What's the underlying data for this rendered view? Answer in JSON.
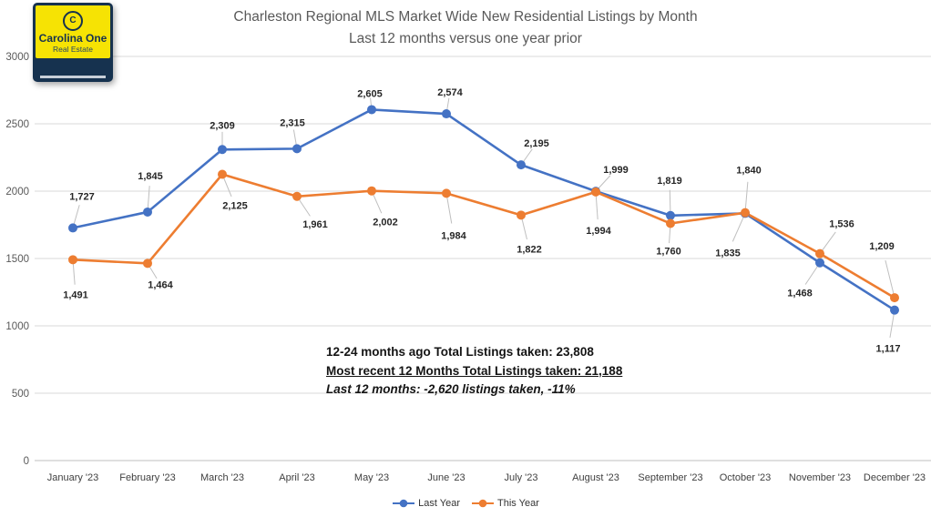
{
  "logo": {
    "symbol": "C",
    "name": "Carolina One",
    "tagline": "Real Estate",
    "colors": {
      "yellow": "#F6E304",
      "navy": "#16324F"
    }
  },
  "title": {
    "line1": "Charleston Regional MLS Market Wide New Residential Listings by Month",
    "line2": "Last 12 months versus one year prior"
  },
  "chart_data": {
    "type": "line",
    "title": "Charleston Regional MLS Market Wide New Residential Listings by Month",
    "subtitle": "Last 12 months versus one year prior",
    "categories": [
      "January '23",
      "February '23",
      "March '23",
      "April '23",
      "May '23",
      "June '23",
      "July '23",
      "August '23",
      "September '23",
      "October '23",
      "November '23",
      "December '23"
    ],
    "series": [
      {
        "name": "Last Year",
        "color": "#4472C4",
        "values": [
          1727,
          1845,
          2309,
          2315,
          2605,
          2574,
          2195,
          1999,
          1819,
          1835,
          1468,
          1117
        ]
      },
      {
        "name": "This Year",
        "color": "#ED7D31",
        "values": [
          1491,
          1464,
          2125,
          1961,
          2002,
          1984,
          1822,
          1994,
          1760,
          1840,
          1536,
          1209
        ]
      }
    ],
    "xlabel": "",
    "ylabel": "",
    "ylim": [
      0,
      3000
    ],
    "yticks": [
      0,
      500,
      1000,
      1500,
      2000,
      2500,
      3000
    ],
    "grid": true,
    "data_labels": true,
    "legend_position": "bottom",
    "grid_color": "#D9D9D9",
    "axis_color": "#BFBFBF",
    "leader_color": "#BFBFBF",
    "tick_label_color": "#595959",
    "x_label_color": "#404040",
    "data_label_color": "#262626"
  },
  "annotation": {
    "line1": "12-24 months ago Total Listings taken: 23,808",
    "line2": "Most recent 12 Months Total Listings taken: 21,188",
    "line3": "Last 12 months: -2,620 listings taken, -11%"
  }
}
